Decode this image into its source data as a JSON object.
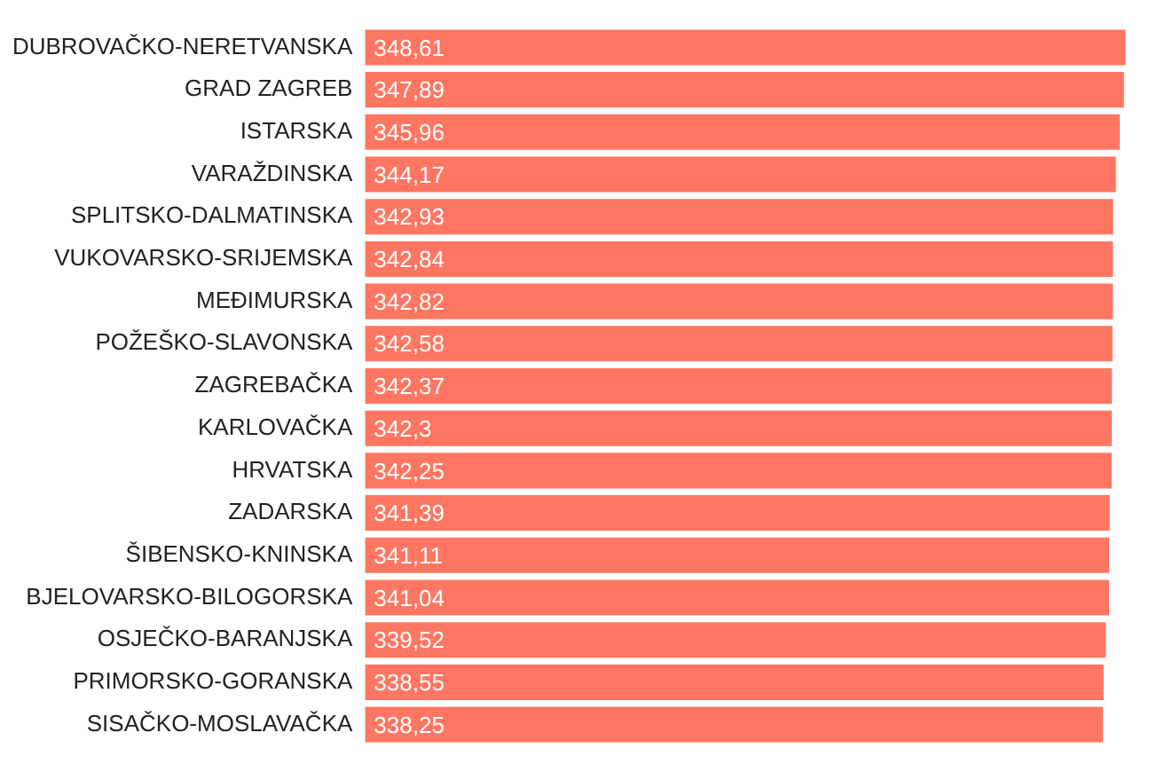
{
  "chart_data": {
    "type": "bar",
    "orientation": "horizontal",
    "tick_labels": "y",
    "grid": false,
    "legend": false,
    "categories": [
      "DUBROVAČKO-NERETVANSKA",
      "GRAD ZAGREB",
      "ISTARSKA",
      "VARAŽDINSKA",
      "SPLITSKO-DALMATINSKA",
      "VUKOVARSKO-SRIJEMSKA",
      "MEĐIMURSKA",
      "POŽEŠKO-SLAVONSKA",
      "ZAGREBAČKA",
      "KARLOVAČKA",
      "HRVATSKA",
      "ZADARSKA",
      "ŠIBENSKO-KNINSKA",
      "BJELOVARSKO-BILOGORSKA",
      "OSJEČKO-BARANJSKA",
      "PRIMORSKO-GORANSKA",
      "SISAČKO-MOSLAVAČKA"
    ],
    "values": [
      348.61,
      347.89,
      345.96,
      344.17,
      342.93,
      342.84,
      342.82,
      342.58,
      342.37,
      342.3,
      342.25,
      341.39,
      341.11,
      341.04,
      339.52,
      338.55,
      338.25
    ],
    "value_labels": [
      "348,61",
      "347,89",
      "345,96",
      "344,17",
      "342,93",
      "342,84",
      "342,82",
      "342,58",
      "342,37",
      "342,3",
      "342,25",
      "341,39",
      "341,11",
      "341,04",
      "339,52",
      "338,55",
      "338,25"
    ],
    "color": "#ff7762"
  }
}
